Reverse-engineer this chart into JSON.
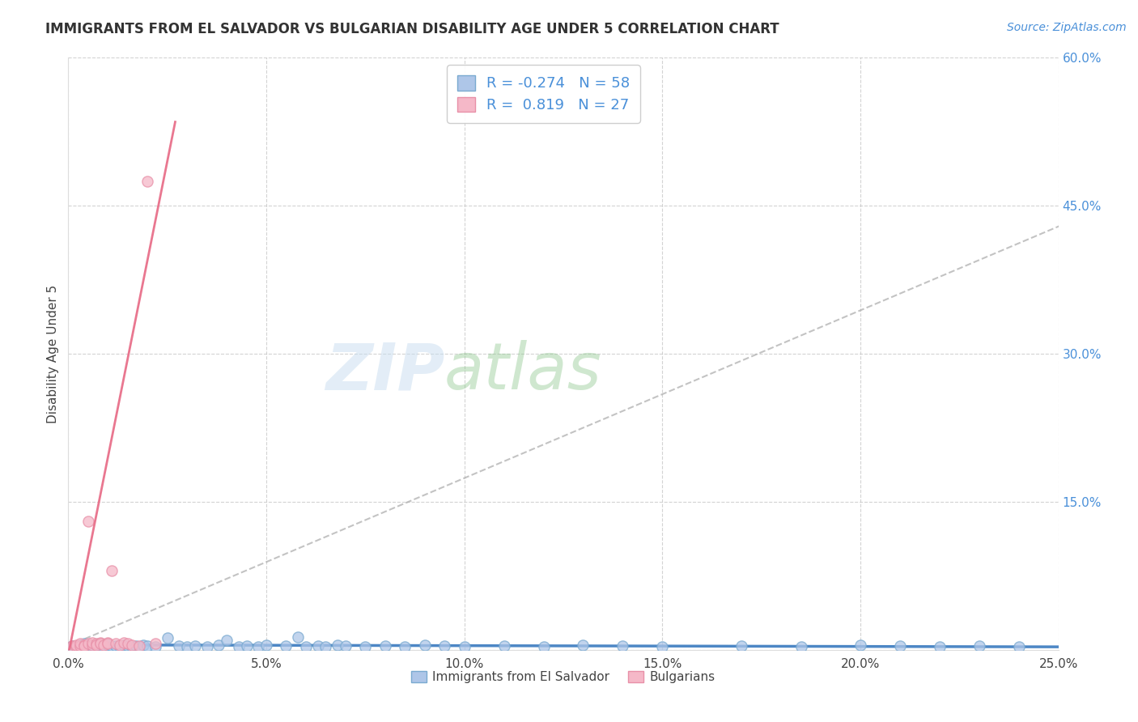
{
  "title": "IMMIGRANTS FROM EL SALVADOR VS BULGARIAN DISABILITY AGE UNDER 5 CORRELATION CHART",
  "source": "Source: ZipAtlas.com",
  "xlabel_bottom": "Immigrants from El Salvador",
  "ylabel_left": "Disability Age Under 5",
  "watermark_zip": "ZIP",
  "watermark_atlas": "atlas",
  "xlim": [
    0.0,
    0.25
  ],
  "ylim": [
    0.0,
    0.6
  ],
  "xticks": [
    0.0,
    0.05,
    0.1,
    0.15,
    0.2,
    0.25
  ],
  "xtick_labels": [
    "0.0%",
    "5.0%",
    "10.0%",
    "15.0%",
    "20.0%",
    "25.0%"
  ],
  "yticks": [
    0.0,
    0.15,
    0.3,
    0.45,
    0.6
  ],
  "ytick_labels_right": [
    "",
    "15.0%",
    "30.0%",
    "45.0%",
    "60.0%"
  ],
  "legend_R1": "-0.274",
  "legend_N1": "58",
  "legend_R2": "0.819",
  "legend_N2": "27",
  "blue_fill": "#aec6e8",
  "blue_edge": "#7aaad0",
  "pink_fill": "#f5b8c8",
  "pink_edge": "#e890a8",
  "trend_blue_color": "#7aaad0",
  "trend_pink_color": "#e8708a",
  "trend_blue_solid": "#3a7abf",
  "background_color": "#ffffff",
  "grid_color": "#c8c8c8",
  "blue_scatter_x": [
    0.001,
    0.002,
    0.003,
    0.003,
    0.004,
    0.005,
    0.006,
    0.007,
    0.008,
    0.009,
    0.01,
    0.011,
    0.012,
    0.013,
    0.014,
    0.015,
    0.016,
    0.017,
    0.018,
    0.019,
    0.02,
    0.022,
    0.025,
    0.028,
    0.03,
    0.032,
    0.035,
    0.038,
    0.04,
    0.043,
    0.045,
    0.048,
    0.05,
    0.055,
    0.058,
    0.06,
    0.063,
    0.065,
    0.068,
    0.07,
    0.075,
    0.08,
    0.085,
    0.09,
    0.095,
    0.1,
    0.11,
    0.12,
    0.13,
    0.14,
    0.15,
    0.17,
    0.185,
    0.2,
    0.21,
    0.22,
    0.23,
    0.24
  ],
  "blue_scatter_y": [
    0.004,
    0.003,
    0.005,
    0.004,
    0.006,
    0.004,
    0.003,
    0.005,
    0.004,
    0.003,
    0.005,
    0.004,
    0.004,
    0.003,
    0.005,
    0.004,
    0.003,
    0.004,
    0.003,
    0.005,
    0.004,
    0.003,
    0.012,
    0.004,
    0.003,
    0.004,
    0.003,
    0.005,
    0.01,
    0.003,
    0.004,
    0.003,
    0.005,
    0.004,
    0.013,
    0.003,
    0.004,
    0.003,
    0.005,
    0.004,
    0.003,
    0.004,
    0.003,
    0.005,
    0.004,
    0.003,
    0.004,
    0.003,
    0.005,
    0.004,
    0.003,
    0.004,
    0.003,
    0.005,
    0.004,
    0.003,
    0.004,
    0.003
  ],
  "pink_scatter_x": [
    0.001,
    0.002,
    0.002,
    0.003,
    0.003,
    0.004,
    0.004,
    0.005,
    0.005,
    0.006,
    0.006,
    0.007,
    0.007,
    0.008,
    0.008,
    0.009,
    0.01,
    0.01,
    0.011,
    0.012,
    0.013,
    0.014,
    0.015,
    0.016,
    0.018,
    0.02,
    0.022
  ],
  "pink_scatter_y": [
    0.004,
    0.003,
    0.005,
    0.004,
    0.006,
    0.005,
    0.004,
    0.13,
    0.006,
    0.005,
    0.007,
    0.006,
    0.005,
    0.007,
    0.006,
    0.005,
    0.007,
    0.006,
    0.08,
    0.006,
    0.005,
    0.007,
    0.006,
    0.005,
    0.004,
    0.475,
    0.006
  ]
}
